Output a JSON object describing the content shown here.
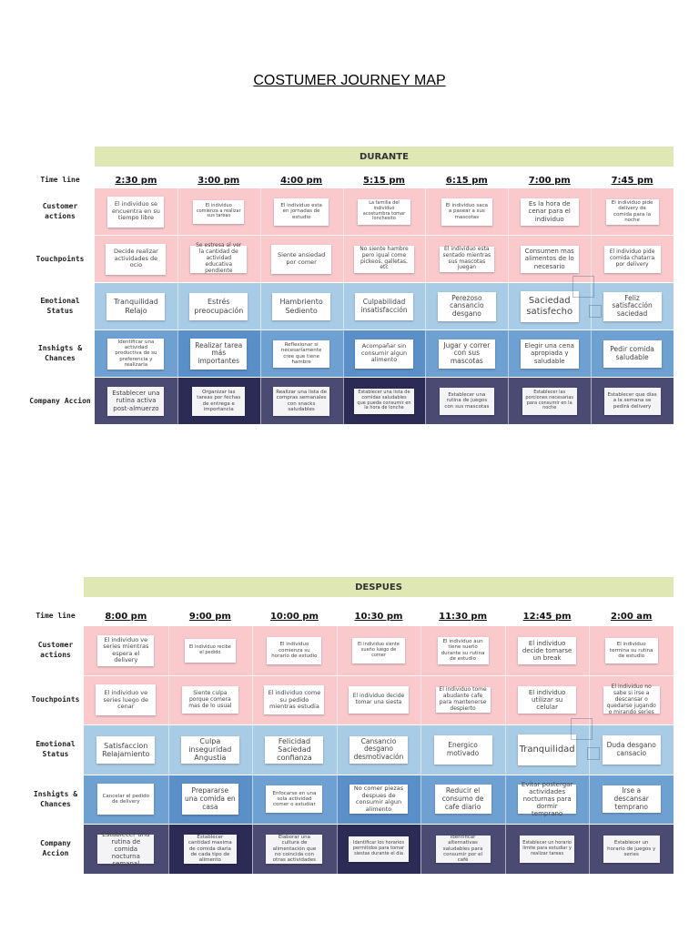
{
  "document": {
    "title": "COSTUMER JOURNEY MAP"
  },
  "maps": [
    {
      "phase": "DURANTE",
      "time_line_label": "Time line",
      "times": [
        "2:30 pm",
        "3:00 pm",
        "4:00 pm",
        "5:15 pm",
        "6:15 pm",
        "7:00 pm",
        "7:45 pm"
      ],
      "rows": [
        {
          "label": "Customer actions",
          "color": "#f9c9cc",
          "notes": [
            "El individuo se encuentra en su tiempo libre",
            "El individuo comienza a realizar sus tareas",
            "El individuo esta en jornadas de estudio",
            "La familia del individuo acostumbra tomar lonchesito",
            "El individuo saca a pasear a sus mascotas",
            "Es la hora de cenar para el individuo",
            "El individuo pide delivery de comida para la noche"
          ]
        },
        {
          "label": "Touchpoints",
          "color": "#f9c9cc",
          "notes": [
            "Decide realizar actividades de ocio",
            "Se estresa al ver la cantidad de actividad educativa pendiente",
            "Siente ansiedad por comer",
            "No siente hambre pero igual come pickeos, galletas, etc",
            "El individuo esta sentado mientras sus mascotas juegan",
            "Consumen mas alimentos de lo necesario",
            "El individuo pide comida chatarra por delivery"
          ]
        },
        {
          "label": "Emotional Status",
          "color": "#a8cbe6",
          "notes": [
            "Tranquilidad Relajo",
            "Estrés preocupación",
            "Hambriento Sediento",
            "Culpabilidad insatisfacción",
            "Perezoso cansancio desgano",
            "Saciedad satisfecho",
            "Feliz satisfacción saciedad"
          ]
        },
        {
          "label": "Inshigts & Chances",
          "color": "#6fa0d2",
          "notes": [
            "Identificar una actividad productiva de su preferencia y realizarla",
            "Realizar tarea más importantes",
            "Reflexionar si necesariamente cree que tiene hambre",
            "Acompañar sin consumir algun alimento",
            "Jugar y correr con sus mascotas",
            "Elegir una cena apropiada y saludable",
            "Pedir comida saludable"
          ]
        },
        {
          "label": "Company Accion",
          "color": "#4b4a73",
          "notes": [
            "Establecer una rutina activa post-almuerzo",
            "Organizar las tareas por fechas de entrega e importancia",
            "Realizar una lista de compras semanales con snacks saludables",
            "Establecer una lista de comidas saludables que pueda consumir en la hora de lonche",
            "Establecer una rutina de juegos con sus mascotas",
            "Establecer las porciones necesarias para consumir en la noche",
            "Establecer que días a la semana se pedirá delivery"
          ]
        }
      ]
    },
    {
      "phase": "DESPUES",
      "time_line_label": "Time line",
      "times": [
        "8:00 pm",
        "9:00 pm",
        "10:00 pm",
        "10:30 pm",
        "11:30 pm",
        "12:45 pm",
        "2:00 am"
      ],
      "rows": [
        {
          "label": "Customer actions",
          "color": "#f9c9cc",
          "notes": [
            "El individuo ve series mientras espera el delivery",
            "El individuo recibe el pedido",
            "El individuo comienza su horario de estudio",
            "El individuo siente sueño luego de comer",
            "El individuo aun tiene sueño durante su rutina de estudio",
            "El individuo decide tomarse un break",
            "El individuo termina su rutina de estudio"
          ]
        },
        {
          "label": "Touchpoints",
          "color": "#f9c9cc",
          "notes": [
            "El individuo ve series luego de cenar",
            "Siente culpa porque comera mas de lo usual",
            "El individuo come su pedido mientras estudia",
            "El individuo decide tomar una siesta",
            "El individuo tome abudante cafe para mantenerse despierto",
            "El individuo utilizar su celular",
            "El individuo no sabe si irse a descansar o quedarse jugando o mirando series"
          ]
        },
        {
          "label": "Emotional Status",
          "color": "#a8cbe6",
          "notes": [
            "Satisfaccion Relajamiento",
            "Culpa inseguridad Angustia",
            "Felicidad Saciedad confianza",
            "Cansancio desgano desmotivación",
            "Energico motivado",
            "Tranquilidad",
            "Duda desgano cansacio"
          ]
        },
        {
          "label": "Inshigts & Chances",
          "color": "#6fa0d2",
          "notes": [
            "Cancelar el pedido de delivery",
            "Prepararse una comida en casa",
            "Enfocarse en una sola actividad comer o estudiar",
            "No comer piezas despues de consumir algun alimento",
            "Reducir el consumo de cafe diario",
            "Evitar postergar actividades nocturnas para dormir temprano",
            "Irse a descansar temprano"
          ]
        },
        {
          "label": "Company Accion",
          "color": "#4b4a73",
          "notes": [
            "Establecer una rutina de comida nocturna semanal",
            "Establecer cantidad maxima de comida diaria de cada tipo de alimento",
            "Elaborar una cultura de alimentación que no coincida con otras actividades",
            "Identificar los horarios permitidos para tomar siestas durante el dia",
            "Identificar alternativas saludables para consumir por el café",
            "Establecer un horario limite para estudiar y realizar tareas",
            "Establecer un horario de juegos y series"
          ]
        }
      ]
    }
  ]
}
